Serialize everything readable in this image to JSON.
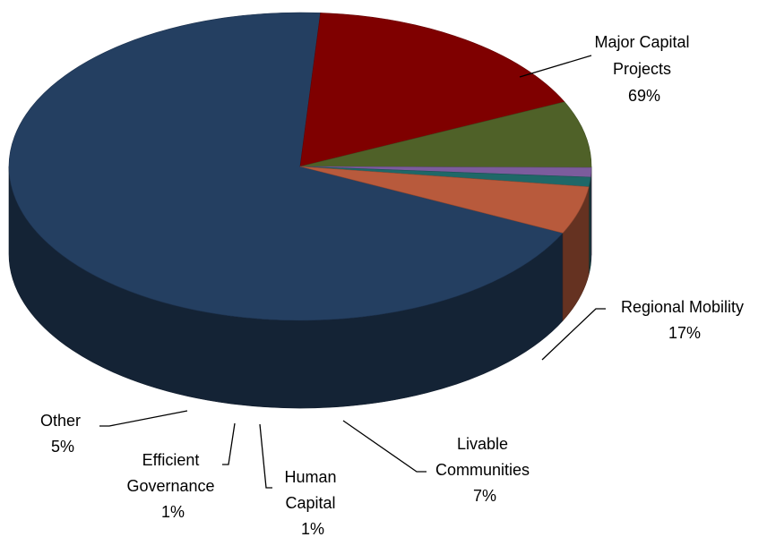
{
  "chart_data": {
    "type": "pie",
    "style": "3d",
    "title": "",
    "start_angle_deg": -86,
    "direction": "clockwise",
    "first_slice_index": 1,
    "slices": [
      {
        "label_lines": [
          "Major Capital",
          "Projects"
        ],
        "percent_label": "69%",
        "value": 69,
        "color": "#243f61"
      },
      {
        "label_lines": [
          "Regional Mobility"
        ],
        "percent_label": "17%",
        "value": 17,
        "color": "#7f0000"
      },
      {
        "label_lines": [
          "Livable",
          "Communities"
        ],
        "percent_label": "7%",
        "value": 7,
        "color": "#4f6128"
      },
      {
        "label_lines": [
          "Human",
          "Capital"
        ],
        "percent_label": "1%",
        "value": 1,
        "color": "#7c5c9d"
      },
      {
        "label_lines": [
          "Efficient",
          "Governance"
        ],
        "percent_label": "1%",
        "value": 1,
        "color": "#1f6868"
      },
      {
        "label_lines": [
          "Other"
        ],
        "percent_label": "5%",
        "value": 5,
        "color": "#b85a3c"
      }
    ],
    "legend": "none",
    "data_labels": "outside-with-leader-lines"
  }
}
